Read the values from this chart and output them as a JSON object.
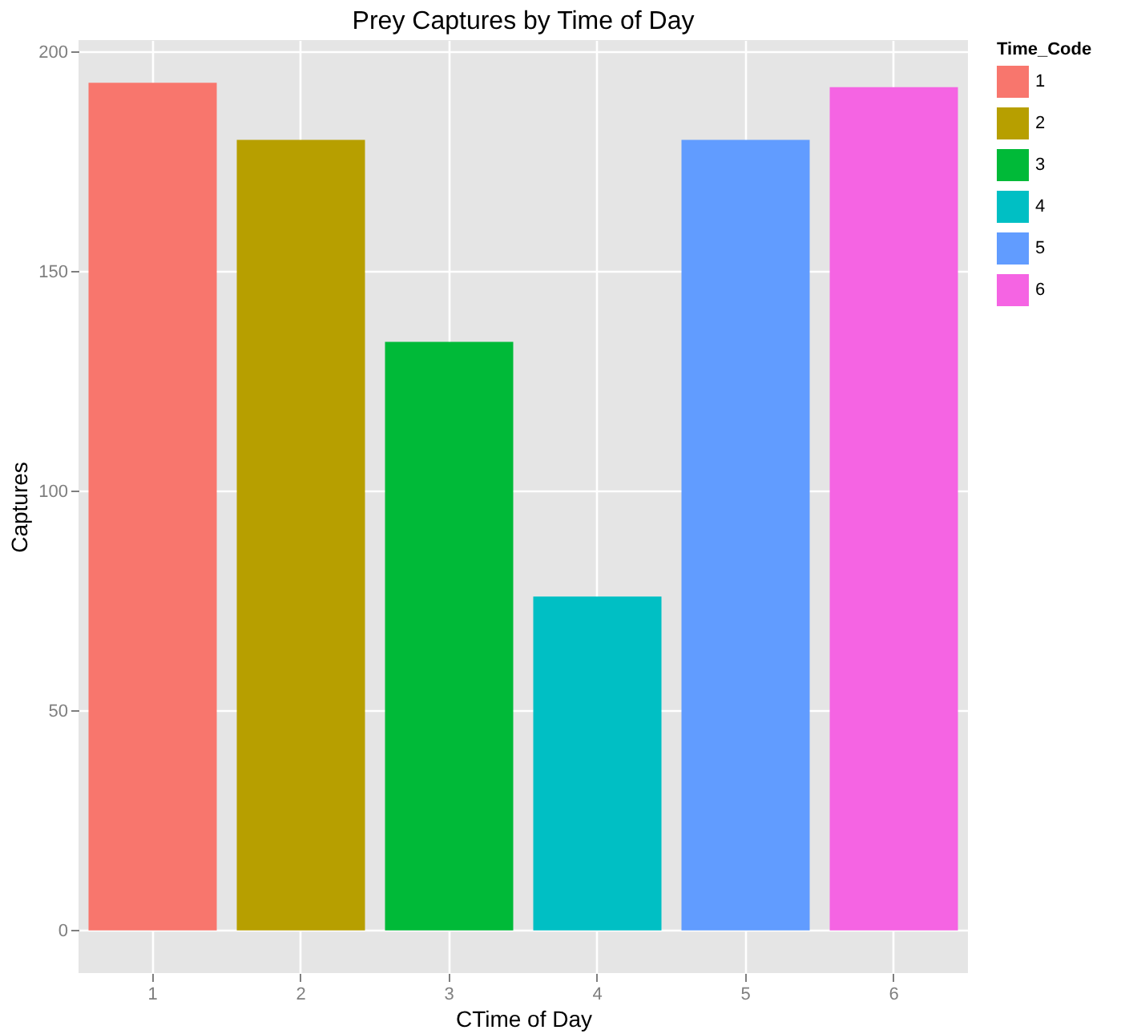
{
  "chart_data": {
    "type": "bar",
    "title": "Prey Captures by Time of Day",
    "xlabel": "CTime of Day",
    "ylabel": "Captures",
    "legend_title": "Time_Code",
    "categories": [
      "1",
      "2",
      "3",
      "4",
      "5",
      "6"
    ],
    "series": [
      {
        "name": "1",
        "color": "#f8766d",
        "values": [
          193,
          null,
          null,
          null,
          null,
          null
        ]
      },
      {
        "name": "2",
        "color": "#b79f00",
        "values": [
          null,
          180,
          null,
          null,
          null,
          null
        ]
      },
      {
        "name": "3",
        "color": "#00ba38",
        "values": [
          null,
          null,
          134,
          null,
          null,
          null
        ]
      },
      {
        "name": "4",
        "color": "#00bfc4",
        "values": [
          null,
          null,
          null,
          76,
          null,
          null
        ]
      },
      {
        "name": "5",
        "color": "#619cff",
        "values": [
          null,
          null,
          null,
          null,
          180,
          null
        ]
      },
      {
        "name": "6",
        "color": "#f564e3",
        "values": [
          null,
          null,
          null,
          null,
          null,
          192
        ]
      }
    ],
    "ylim": [
      -9.7,
      202.7
    ],
    "yticks": [
      0,
      50,
      100,
      150,
      200
    ],
    "grid": true,
    "legend": "right"
  }
}
